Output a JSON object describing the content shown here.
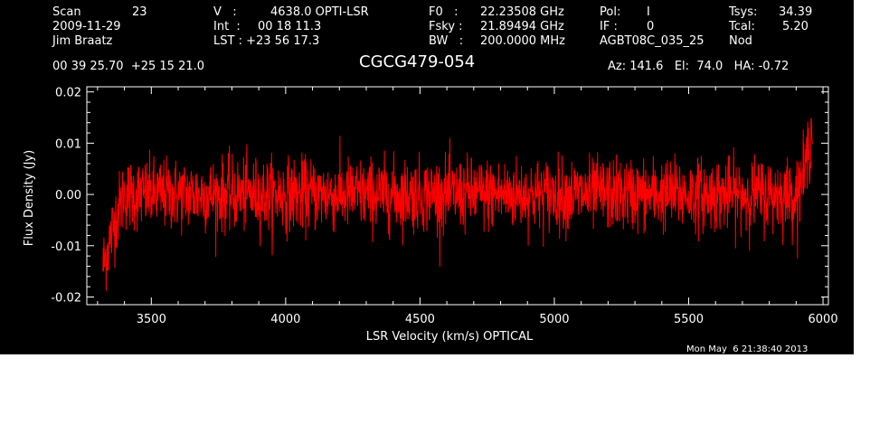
{
  "header": {
    "scan_label": "Scan",
    "scan_value": "23",
    "date": "2009-11-29",
    "observer": "Jim Braatz",
    "v_label": "V   :",
    "v_value": "4638.0 OPTI-LSR",
    "int_label": "Int  :",
    "int_value": "00 18 11.3",
    "lst_label": "LST : +23 56 17.3",
    "f0_label": "F0   :",
    "f0_value": "22.23508 GHz",
    "fsky_label": "Fsky :",
    "fsky_value": "21.89494 GHz",
    "bw_label": "BW   :",
    "bw_value": "200.0000 MHz",
    "pol_label": "Pol:",
    "pol_value": "I",
    "if_label": "IF :",
    "if_value": "0",
    "project": "AGBT08C_035_25",
    "tsys_label": "Tsys:",
    "tsys_value": "34.39",
    "tcal_label": "Tcal:",
    "tcal_value": "5.20",
    "mode": "Nod",
    "coords": "00 39 25.70  +25 15 21.0",
    "source": "CGCG479-054",
    "az_el_ha": "Az: 141.6   El:  74.0   HA: -0.72"
  },
  "footer": {
    "timestamp": "Mon May  6 21:38:40 2013"
  },
  "chart_data": {
    "type": "line",
    "title": "CGCG479-054",
    "xlabel": "LSR Velocity (km/s) OPTICAL",
    "ylabel": "Flux Density (Jy)",
    "xlim": [
      3260,
      6020
    ],
    "ylim": [
      -0.0215,
      0.021
    ],
    "x_ticks": [
      3500,
      4000,
      4500,
      5000,
      5500,
      6000
    ],
    "y_ticks": [
      -0.02,
      -0.01,
      0.0,
      0.01,
      0.02
    ],
    "y_tick_labels": [
      "-0.02",
      "-0.01",
      "0.00",
      "0.01",
      "0.02"
    ],
    "series": [
      {
        "color": "#ff0000",
        "x_range": [
          3320,
          5960
        ],
        "noise_rms": 0.0035,
        "edge_left": [
          [
            3320,
            -0.014
          ],
          [
            3340,
            -0.01
          ],
          [
            3370,
            -0.004
          ],
          [
            3400,
            0.0
          ]
        ],
        "edge_right": [
          [
            5900,
            0.0
          ],
          [
            5930,
            0.004
          ],
          [
            5950,
            0.01
          ],
          [
            5960,
            0.013
          ]
        ]
      }
    ],
    "colors": {
      "background": "#000000",
      "axes": "#ffffff",
      "line": "#ff0000"
    }
  }
}
